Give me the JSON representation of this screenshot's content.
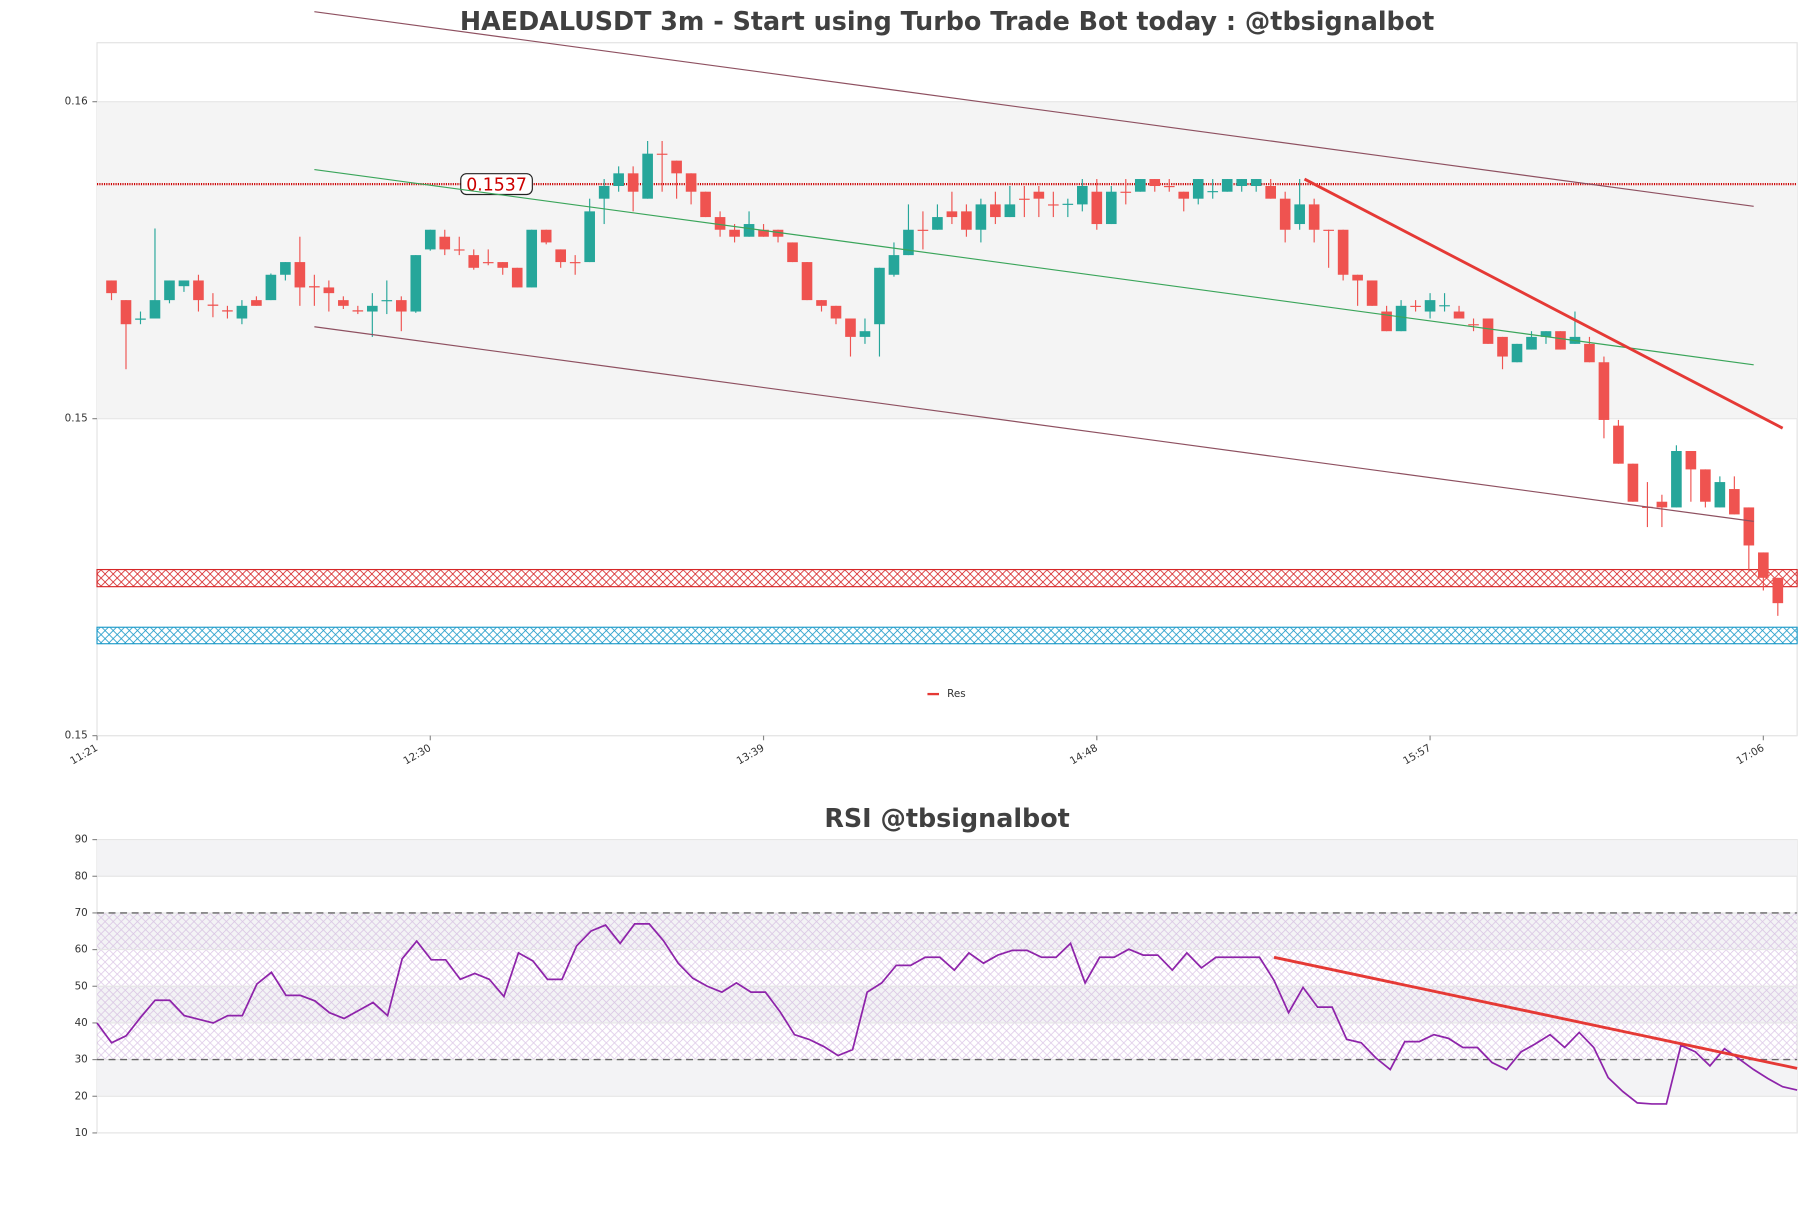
{
  "chart_data": [
    {
      "type": "candlestick",
      "title": "HAEDALUSDT 3m - Start using Turbo Trade Bot today : @tbsignalbot",
      "x": [
        684,
        687,
        690,
        693,
        696,
        699,
        702,
        705,
        708,
        711,
        714,
        717,
        720,
        723,
        726,
        729,
        732,
        735,
        738,
        741,
        744,
        747,
        750,
        753,
        756,
        759,
        762,
        765,
        768,
        771,
        774,
        777,
        780,
        783,
        786,
        789,
        792,
        795,
        798,
        801,
        804,
        807,
        810,
        813,
        816,
        819,
        822,
        825,
        828,
        831,
        834,
        837,
        840,
        843,
        846,
        849,
        852,
        855,
        858,
        861,
        864,
        867,
        870,
        873,
        876,
        879,
        882,
        885,
        888,
        891,
        894,
        897,
        900,
        903,
        906,
        909,
        912,
        915,
        918,
        921,
        924,
        927,
        930,
        933,
        936,
        939,
        942,
        945,
        948,
        951,
        954,
        957,
        960,
        963,
        966,
        969,
        972,
        975,
        978,
        981,
        984,
        987,
        990,
        993,
        996,
        999,
        1002,
        1005,
        1008,
        1011,
        1014,
        1017,
        1020,
        1023,
        1026,
        1029
      ],
      "open": [
        0.15218,
        0.15187,
        0.15156,
        0.15158,
        0.15187,
        0.15209,
        0.15218,
        0.1518,
        0.15171,
        0.15158,
        0.15187,
        0.15187,
        0.15227,
        0.15247,
        0.15209,
        0.15207,
        0.15187,
        0.15171,
        0.15169,
        0.15186,
        0.15187,
        0.15169,
        0.15267,
        0.15287,
        0.15267,
        0.15258,
        0.15247,
        0.15247,
        0.15238,
        0.15207,
        0.15298,
        0.15267,
        0.15247,
        0.15247,
        0.15347,
        0.15367,
        0.15387,
        0.15347,
        0.15418,
        0.15407,
        0.15387,
        0.15358,
        0.15318,
        0.15298,
        0.15287,
        0.15298,
        0.15298,
        0.15278,
        0.15247,
        0.15187,
        0.15178,
        0.15158,
        0.15129,
        0.15149,
        0.15227,
        0.15258,
        0.15298,
        0.15298,
        0.15327,
        0.15327,
        0.15298,
        0.15338,
        0.15318,
        0.15347,
        0.15358,
        0.15338,
        0.15338,
        0.15338,
        0.15358,
        0.15307,
        0.15358,
        0.15358,
        0.15378,
        0.15367,
        0.15358,
        0.15347,
        0.15358,
        0.15358,
        0.15367,
        0.15367,
        0.15367,
        0.15347,
        0.15307,
        0.15338,
        0.15298,
        0.15298,
        0.15227,
        0.15218,
        0.15169,
        0.15138,
        0.15178,
        0.15169,
        0.15178,
        0.15169,
        0.15149,
        0.15158,
        0.15129,
        0.15089,
        0.15109,
        0.15129,
        0.15138,
        0.15118,
        0.15118,
        0.15089,
        0.14989,
        0.14929,
        0.14861,
        0.14869,
        0.1486,
        0.14949,
        0.1492,
        0.1486,
        0.14889,
        0.1486,
        0.14789,
        0.14749
      ],
      "high": [
        0.15218,
        0.15187,
        0.15169,
        0.153,
        0.15218,
        0.15218,
        0.15227,
        0.15198,
        0.15178,
        0.15187,
        0.15193,
        0.15229,
        0.15247,
        0.15287,
        0.15227,
        0.15218,
        0.15193,
        0.15178,
        0.15198,
        0.15218,
        0.15193,
        0.15258,
        0.15298,
        0.15298,
        0.15287,
        0.15267,
        0.15267,
        0.15247,
        0.15238,
        0.15298,
        0.15298,
        0.15267,
        0.15258,
        0.15347,
        0.15378,
        0.15398,
        0.15398,
        0.15438,
        0.15438,
        0.15407,
        0.15387,
        0.15358,
        0.15327,
        0.15307,
        0.15327,
        0.15307,
        0.15298,
        0.15278,
        0.15247,
        0.15187,
        0.15178,
        0.15158,
        0.15158,
        0.15238,
        0.15278,
        0.15338,
        0.15327,
        0.15338,
        0.15358,
        0.15338,
        0.15347,
        0.15358,
        0.15367,
        0.15367,
        0.15367,
        0.15358,
        0.15347,
        0.15378,
        0.15378,
        0.15367,
        0.15378,
        0.15378,
        0.15378,
        0.15378,
        0.15358,
        0.15378,
        0.15378,
        0.15378,
        0.15378,
        0.15378,
        0.15378,
        0.15358,
        0.15378,
        0.15347,
        0.15298,
        0.15298,
        0.15227,
        0.15218,
        0.15178,
        0.15187,
        0.15187,
        0.15198,
        0.15198,
        0.15178,
        0.15158,
        0.15158,
        0.15129,
        0.15118,
        0.15138,
        0.15138,
        0.15138,
        0.15169,
        0.15129,
        0.15098,
        0.14998,
        0.14929,
        0.149,
        0.1488,
        0.14958,
        0.14949,
        0.1492,
        0.14909,
        0.14909,
        0.1486,
        0.14789,
        0.14749
      ],
      "low": [
        0.15187,
        0.15078,
        0.15149,
        0.15158,
        0.15182,
        0.152,
        0.15169,
        0.1516,
        0.15158,
        0.15149,
        0.15178,
        0.15187,
        0.15218,
        0.15178,
        0.15178,
        0.15169,
        0.15173,
        0.15165,
        0.15129,
        0.15165,
        0.15138,
        0.15167,
        0.15265,
        0.15258,
        0.15258,
        0.15235,
        0.15242,
        0.15227,
        0.15207,
        0.15207,
        0.15275,
        0.15238,
        0.15227,
        0.15247,
        0.15307,
        0.15358,
        0.15327,
        0.15347,
        0.15358,
        0.15347,
        0.15338,
        0.15318,
        0.15287,
        0.15278,
        0.15287,
        0.15287,
        0.15278,
        0.15247,
        0.15187,
        0.15169,
        0.15149,
        0.15098,
        0.15118,
        0.15098,
        0.15224,
        0.15258,
        0.15267,
        0.15298,
        0.15307,
        0.15287,
        0.15278,
        0.15307,
        0.15318,
        0.15318,
        0.15318,
        0.15318,
        0.15318,
        0.15327,
        0.15298,
        0.15307,
        0.15338,
        0.15358,
        0.15358,
        0.15358,
        0.15327,
        0.15338,
        0.15347,
        0.15358,
        0.15358,
        0.15358,
        0.15347,
        0.15278,
        0.15298,
        0.15278,
        0.15238,
        0.15218,
        0.15178,
        0.15178,
        0.15138,
        0.15138,
        0.15169,
        0.15158,
        0.15169,
        0.15158,
        0.15138,
        0.15118,
        0.15078,
        0.15089,
        0.15109,
        0.15118,
        0.15109,
        0.15118,
        0.15089,
        0.14969,
        0.14929,
        0.14869,
        0.14829,
        0.14829,
        0.1486,
        0.14869,
        0.1486,
        0.1486,
        0.14849,
        0.1476,
        0.14729,
        0.14689
      ],
      "close": [
        0.15198,
        0.15149,
        0.15158,
        0.15187,
        0.15218,
        0.15218,
        0.15187,
        0.15178,
        0.15169,
        0.15178,
        0.15178,
        0.15227,
        0.15247,
        0.15207,
        0.15207,
        0.15198,
        0.15178,
        0.15169,
        0.15178,
        0.15187,
        0.15169,
        0.15258,
        0.15298,
        0.15267,
        0.15266,
        0.15238,
        0.15246,
        0.15238,
        0.15207,
        0.15298,
        0.15278,
        0.15247,
        0.15246,
        0.15327,
        0.15367,
        0.15387,
        0.15358,
        0.15418,
        0.15417,
        0.15387,
        0.15358,
        0.15318,
        0.15298,
        0.15287,
        0.15307,
        0.15287,
        0.15287,
        0.15247,
        0.15187,
        0.15178,
        0.15158,
        0.15129,
        0.15138,
        0.15238,
        0.15258,
        0.15298,
        0.15297,
        0.15318,
        0.15318,
        0.15298,
        0.15338,
        0.15318,
        0.15338,
        0.15346,
        0.15347,
        0.15337,
        0.15339,
        0.15367,
        0.15307,
        0.15358,
        0.15357,
        0.15378,
        0.15367,
        0.15366,
        0.15347,
        0.15378,
        0.15359,
        0.15378,
        0.15378,
        0.15378,
        0.15347,
        0.15298,
        0.15338,
        0.15298,
        0.15297,
        0.15227,
        0.15218,
        0.15178,
        0.15138,
        0.15178,
        0.15177,
        0.15187,
        0.15179,
        0.15158,
        0.15148,
        0.15118,
        0.15098,
        0.15118,
        0.15129,
        0.15138,
        0.15109,
        0.15129,
        0.15089,
        0.14998,
        0.14929,
        0.14869,
        0.1486,
        0.1486,
        0.14949,
        0.1492,
        0.14869,
        0.149,
        0.14849,
        0.148,
        0.14749,
        0.14709
      ],
      "up_color": "#26a69a",
      "down_color": "#ef5350",
      "xlim": [
        681,
        1033
      ],
      "xticks": [
        {
          "value": 681,
          "label": "11:21"
        },
        {
          "value": 750,
          "label": "12:30"
        },
        {
          "value": 819,
          "label": "13:39"
        },
        {
          "value": 888,
          "label": "14:48"
        },
        {
          "value": 957,
          "label": "15:57"
        },
        {
          "value": 1026,
          "label": "17:06"
        }
      ],
      "ylim": [
        0.145,
        0.15593
      ],
      "yticks": [
        {
          "value": 0.155,
          "label": "0.16"
        },
        {
          "value": 0.15,
          "label": "0.15"
        },
        {
          "value": 0.145,
          "label": "0.15"
        }
      ],
      "grid": true,
      "shade": {
        "from": 0.15,
        "to": 0.155,
        "color": "#f4f4f4"
      },
      "hlines": [
        {
          "value": 0.1537,
          "color": "#cc0000"
        }
      ],
      "zones": [
        {
          "low": 0.14735,
          "high": 0.14762,
          "color": "#d62728"
        },
        {
          "low": 0.14645,
          "high": 0.14671,
          "color": "#1f9bc9"
        }
      ],
      "lines": [
        {
          "x": [
            726,
            1024
          ],
          "y": [
            0.15642,
            0.15335
          ],
          "color": "#8e5060"
        },
        {
          "x": [
            726,
            1024
          ],
          "y": [
            0.15145,
            0.14838
          ],
          "color": "#8e5060"
        },
        {
          "x": [
            726,
            1024
          ],
          "y": [
            0.15393,
            0.15085
          ],
          "color": "#3aa55a"
        },
        {
          "name": "Res",
          "x": [
            931,
            1030
          ],
          "y": [
            0.15378,
            0.14985
          ],
          "color": "#e53935"
        }
      ],
      "legend": "lower center"
    },
    {
      "type": "line",
      "title": "RSI @tbsignalbot",
      "values": [
        40,
        34.6,
        36.5,
        41.5,
        46.2,
        46.2,
        42,
        41,
        40,
        42,
        42,
        50.6,
        53.8,
        47.5,
        47.5,
        46,
        42.8,
        41.2,
        43.4,
        45.6,
        42,
        57.5,
        62.3,
        57.2,
        57.2,
        51.9,
        53.5,
        51.9,
        47.2,
        59.1,
        56.9,
        51.9,
        51.9,
        61,
        65.1,
        66.7,
        61.7,
        67,
        67,
        62.3,
        56.3,
        52.2,
        50,
        48.4,
        50.9,
        48.4,
        48.4,
        43.1,
        36.8,
        35.5,
        33.6,
        31.1,
        32.7,
        48.4,
        50.9,
        55.7,
        55.7,
        57.9,
        57.9,
        54.4,
        59.1,
        56.3,
        58.5,
        59.8,
        59.8,
        57.9,
        57.9,
        61.7,
        50.9,
        57.9,
        57.9,
        60.1,
        58.5,
        58.5,
        54.4,
        59.1,
        55,
        57.9,
        57.9,
        57.9,
        57.9,
        51.6,
        42.8,
        49.7,
        44.3,
        44.3,
        35.5,
        34.6,
        30.5,
        27.3,
        34.9,
        34.9,
        36.8,
        35.8,
        33.3,
        33.3,
        29.2,
        27.3,
        32.1,
        34.3,
        36.8,
        33.3,
        37.4,
        33.3,
        25.1,
        21.3,
        18.2,
        17.9,
        17.9,
        33.9,
        32.1,
        28.3,
        33,
        30.2,
        27.3,
        24.8,
        22.6,
        21.7
      ],
      "color": "#8e24aa",
      "ylim": [
        10,
        90
      ],
      "yticks": [
        10,
        20,
        30,
        40,
        50,
        60,
        70,
        80,
        90
      ],
      "bands": [
        {
          "from": 80,
          "to": 90
        },
        {
          "from": 60,
          "to": 70
        },
        {
          "from": 40,
          "to": 50
        },
        {
          "from": 20,
          "to": 30
        }
      ],
      "hatch": {
        "from": 30,
        "to": 70,
        "color": "#c9a9d9"
      },
      "hlines": [
        70,
        30
      ],
      "trendline": {
        "x": [
          81,
          117
        ],
        "y": [
          57.9,
          27.6
        ],
        "color": "#e53935"
      }
    }
  ]
}
